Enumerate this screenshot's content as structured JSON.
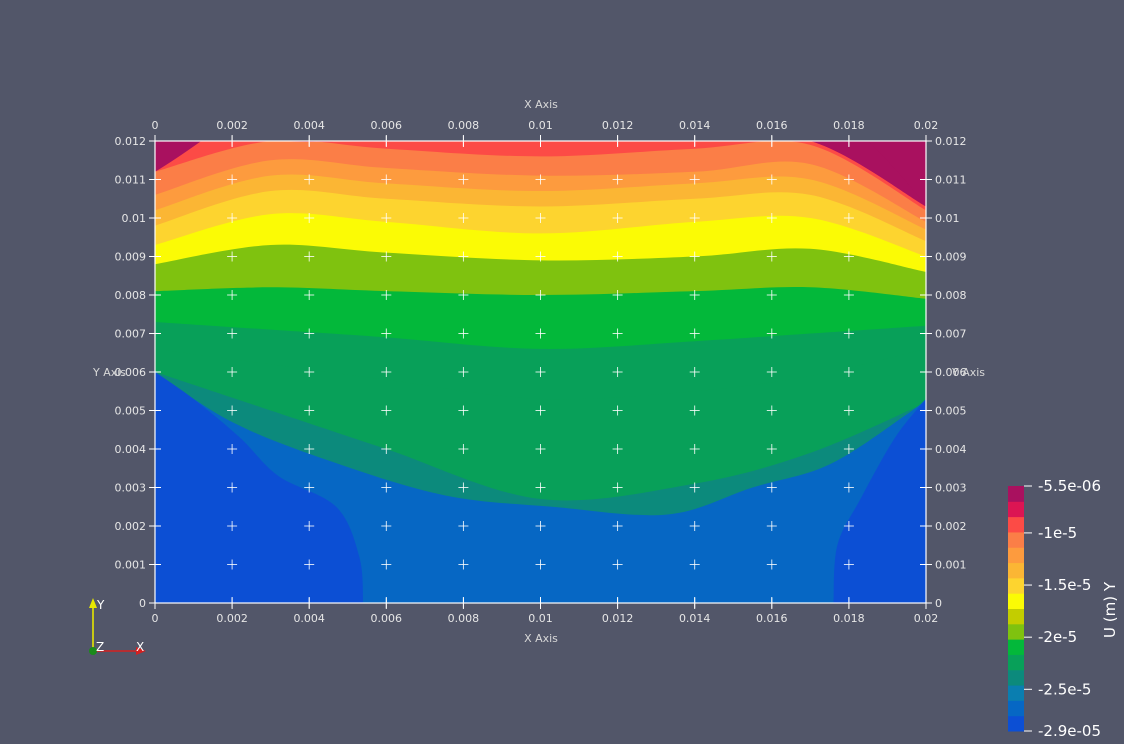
{
  "chart_data": {
    "type": "contour",
    "xlabel": "X Axis",
    "ylabel": "Y Axis",
    "xlim": [
      0,
      0.02
    ],
    "ylim": [
      0,
      0.012
    ],
    "x_ticks": [
      "0",
      "0.002",
      "0.004",
      "0.006",
      "0.008",
      "0.01",
      "0.012",
      "0.014",
      "0.016",
      "0.018",
      "0.02"
    ],
    "y_ticks": [
      "0",
      "0.001",
      "0.002",
      "0.003",
      "0.004",
      "0.005",
      "0.006",
      "0.007",
      "0.008",
      "0.009",
      "0.01",
      "0.011",
      "0.012"
    ],
    "colorbar": {
      "title": "U (m) Y",
      "range": [
        -2.9e-05,
        -5.5e-06
      ],
      "labels": [
        "-5.5e-06",
        "-1e-5",
        "-1.5e-5",
        "-2e-5",
        "-2.5e-5",
        "-2.9e-05"
      ],
      "label_values": [
        -5.5e-06,
        -1e-05,
        -1.5e-05,
        -2e-05,
        -2.5e-05,
        -2.9e-05
      ],
      "colors": [
        "#0c4fd4",
        "#0667c4",
        "#0a7eb0",
        "#0c8a7c",
        "#08a059",
        "#03b83a",
        "#7fc20f",
        "#c3cd00",
        "#fbfb05",
        "#fdd42f",
        "#fbb634",
        "#fd9b3e",
        "#fb7e47",
        "#fc4b46",
        "#dc1553",
        "#a9115f"
      ]
    },
    "contour_levels_y_at_x": {
      "x": [
        0,
        0.003,
        0.006,
        0.01,
        0.014,
        0.017,
        0.02
      ],
      "bands": [
        {
          "level": "band-16",
          "y": [
            0.01225,
            0.012,
            0.012,
            0.012,
            0.012,
            0.012,
            0.0103
          ]
        },
        {
          "level": "band-15",
          "y": [
            0.0112,
            0.012,
            0.0118,
            0.0116,
            0.0118,
            0.0119,
            0.0102
          ]
        },
        {
          "level": "band-14",
          "y": [
            0.0106,
            0.0115,
            0.0113,
            0.0111,
            0.0112,
            0.0114,
            0.0099
          ]
        },
        {
          "level": "band-13",
          "y": [
            0.0102,
            0.0111,
            0.0109,
            0.0107,
            0.0109,
            0.011,
            0.0097
          ]
        },
        {
          "level": "band-12",
          "y": [
            0.0098,
            0.0107,
            0.0105,
            0.0103,
            0.0105,
            0.0106,
            0.0094
          ]
        },
        {
          "level": "band-11",
          "y": [
            0.0093,
            0.0101,
            0.0099,
            0.0096,
            0.0099,
            0.01,
            0.009
          ]
        },
        {
          "level": "band-10",
          "y": [
            0.0088,
            0.0093,
            0.0091,
            0.0089,
            0.009,
            0.0092,
            0.0086
          ]
        },
        {
          "level": "band-9",
          "y": [
            0.0081,
            0.0082,
            0.0081,
            0.008,
            0.0081,
            0.0082,
            0.0079
          ]
        },
        {
          "level": "band-8",
          "y": [
            0.0073,
            0.0071,
            0.0069,
            0.0066,
            0.0068,
            0.007,
            0.0072
          ]
        },
        {
          "level": "band-7",
          "y": [
            0.0066,
            0.0062,
            0.0058,
            0.0053,
            0.0055,
            0.0059,
            0.0066
          ]
        },
        {
          "level": "band-6",
          "y": [
            0.006,
            0.005,
            0.004,
            0.0027,
            0.0031,
            0.0039,
            0.0052
          ]
        }
      ]
    },
    "orientation_axes": {
      "labels": [
        "Y",
        "Z",
        "X"
      ],
      "colors": [
        "#e6e600",
        "#1a8a1a",
        "#d42020"
      ]
    }
  }
}
